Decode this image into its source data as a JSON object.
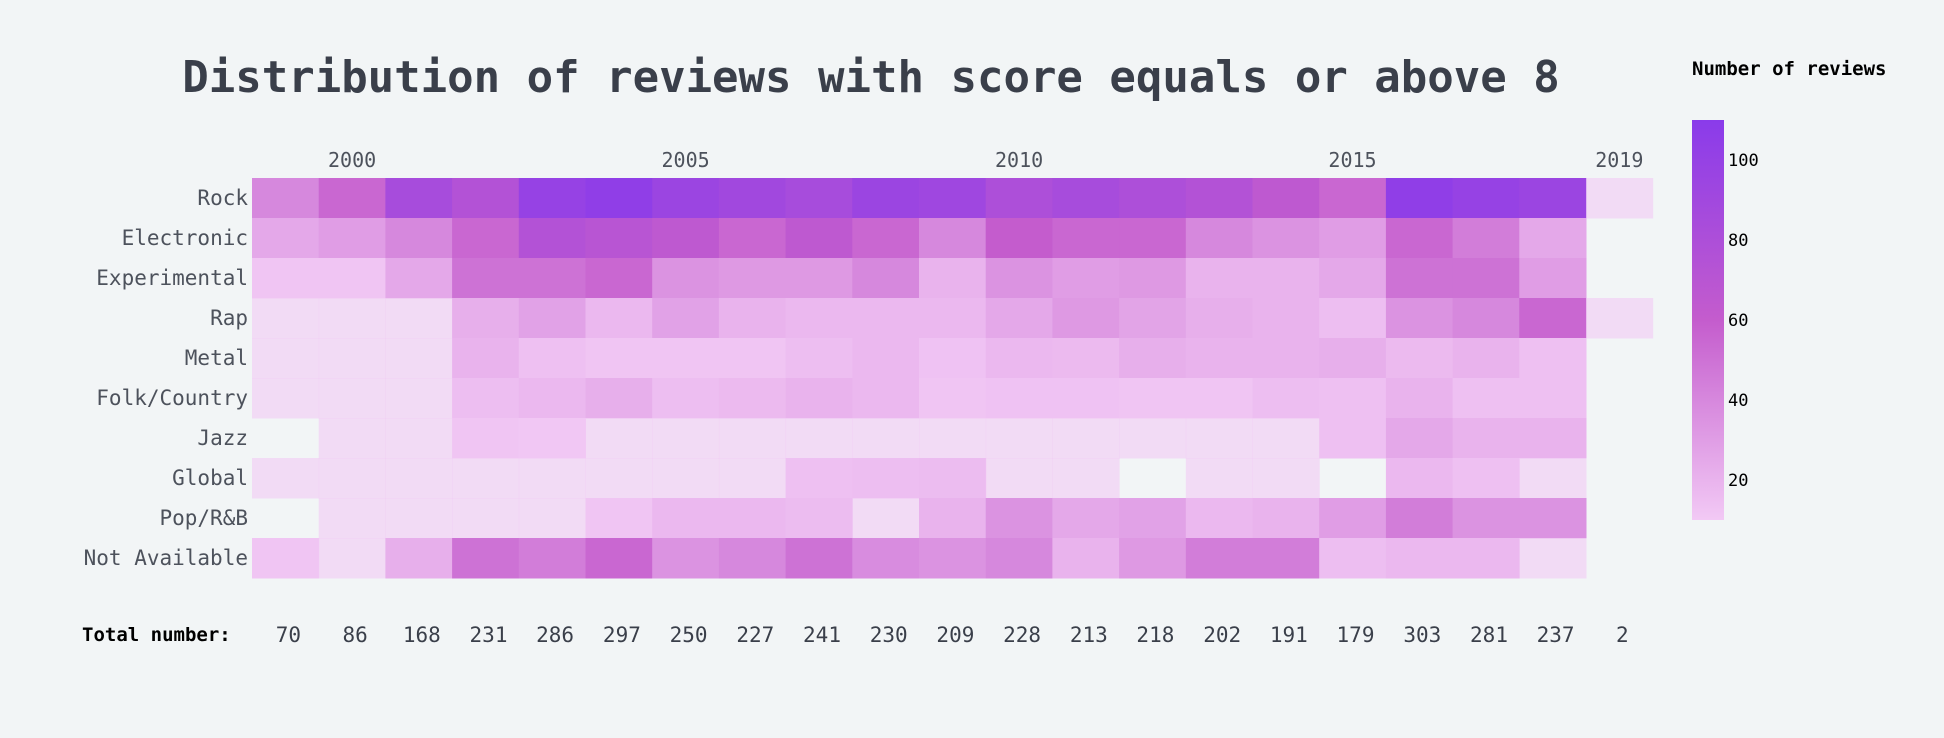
{
  "chart_data": {
    "type": "heatmap",
    "title": "Distribution of reviews with score equals or above 8",
    "categories": [
      "Rock",
      "Electronic",
      "Experimental",
      "Rap",
      "Metal",
      "Folk/Country",
      "Jazz",
      "Global",
      "Pop/R&B",
      "Not Available"
    ],
    "years": [
      1999,
      2000,
      2001,
      2002,
      2003,
      2004,
      2005,
      2006,
      2007,
      2008,
      2009,
      2010,
      2011,
      2012,
      2013,
      2014,
      2015,
      2016,
      2017,
      2018,
      2019
    ],
    "x_tick_labels": [
      {
        "year": 2000,
        "label": "2000"
      },
      {
        "year": 2005,
        "label": "2005"
      },
      {
        "year": 2010,
        "label": "2010"
      },
      {
        "year": 2015,
        "label": "2015"
      },
      {
        "year": 2019,
        "label": "2019"
      }
    ],
    "values": [
      [
        40,
        55,
        85,
        75,
        100,
        105,
        95,
        90,
        85,
        95,
        92,
        80,
        85,
        80,
        75,
        65,
        55,
        105,
        100,
        95,
        10
      ],
      [
        25,
        30,
        40,
        55,
        75,
        70,
        65,
        55,
        65,
        55,
        40,
        60,
        55,
        55,
        40,
        35,
        30,
        55,
        45,
        25,
        null
      ],
      [
        12,
        12,
        25,
        50,
        50,
        55,
        35,
        32,
        32,
        40,
        20,
        35,
        30,
        32,
        20,
        20,
        25,
        50,
        50,
        30,
        null
      ],
      [
        8,
        8,
        10,
        22,
        28,
        18,
        28,
        20,
        18,
        18,
        18,
        25,
        32,
        27,
        22,
        20,
        15,
        35,
        40,
        55,
        8
      ],
      [
        10,
        9,
        10,
        20,
        14,
        12,
        12,
        12,
        15,
        18,
        13,
        18,
        17,
        22,
        20,
        20,
        22,
        17,
        20,
        14,
        null
      ],
      [
        10,
        6,
        9,
        15,
        18,
        22,
        15,
        17,
        20,
        18,
        12,
        13,
        13,
        12,
        12,
        15,
        14,
        20,
        14,
        14,
        null
      ],
      [
        null,
        7,
        10,
        12,
        11,
        10,
        9,
        9,
        8,
        6,
        9,
        10,
        6,
        8,
        10,
        10,
        14,
        25,
        20,
        20,
        null
      ],
      [
        8,
        7,
        6,
        6,
        6,
        8,
        8,
        6,
        14,
        15,
        16,
        6,
        6,
        null,
        10,
        9,
        null,
        18,
        14,
        8,
        null
      ],
      [
        null,
        8,
        10,
        8,
        8,
        12,
        18,
        18,
        16,
        10,
        20,
        35,
        25,
        28,
        18,
        20,
        30,
        45,
        35,
        35,
        null
      ],
      [
        12,
        10,
        22,
        50,
        45,
        55,
        35,
        40,
        50,
        38,
        35,
        40,
        20,
        32,
        45,
        45,
        15,
        18,
        18,
        9,
        null
      ]
    ],
    "colorbar": {
      "title": "Number of reviews",
      "ticks": [
        20,
        40,
        60,
        80,
        100
      ],
      "range": [
        10,
        110
      ]
    },
    "colors": {
      "low": "#f2c9f5",
      "mid": "#c45ccd",
      "high": "#8a3bea"
    },
    "totals_label": "Total number:",
    "totals": [
      70,
      86,
      168,
      231,
      286,
      297,
      250,
      227,
      241,
      230,
      209,
      228,
      213,
      218,
      202,
      191,
      179,
      303,
      281,
      237,
      2
    ]
  }
}
